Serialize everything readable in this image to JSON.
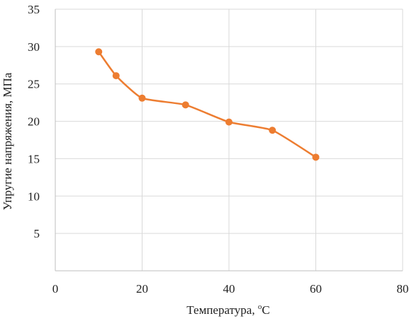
{
  "chart_data": {
    "type": "scatter",
    "title": "",
    "xlabel_main": "Температура, ",
    "xlabel_sup": "о",
    "xlabel_end": "С",
    "ylabel": "Упругие напряжения, МПа",
    "xlim": [
      0,
      80
    ],
    "ylim": [
      0,
      35
    ],
    "x_ticks": [
      0,
      20,
      40,
      60,
      80
    ],
    "y_ticks": [
      5,
      10,
      15,
      20,
      25,
      30,
      35
    ],
    "grid": true,
    "series": [
      {
        "color": "#ED7D31",
        "line": "smooth",
        "marker": "circle",
        "x": [
          10,
          14,
          20,
          30,
          40,
          50,
          60
        ],
        "y": [
          29.3,
          26.1,
          23.1,
          22.2,
          19.9,
          18.8,
          15.2
        ]
      }
    ]
  }
}
